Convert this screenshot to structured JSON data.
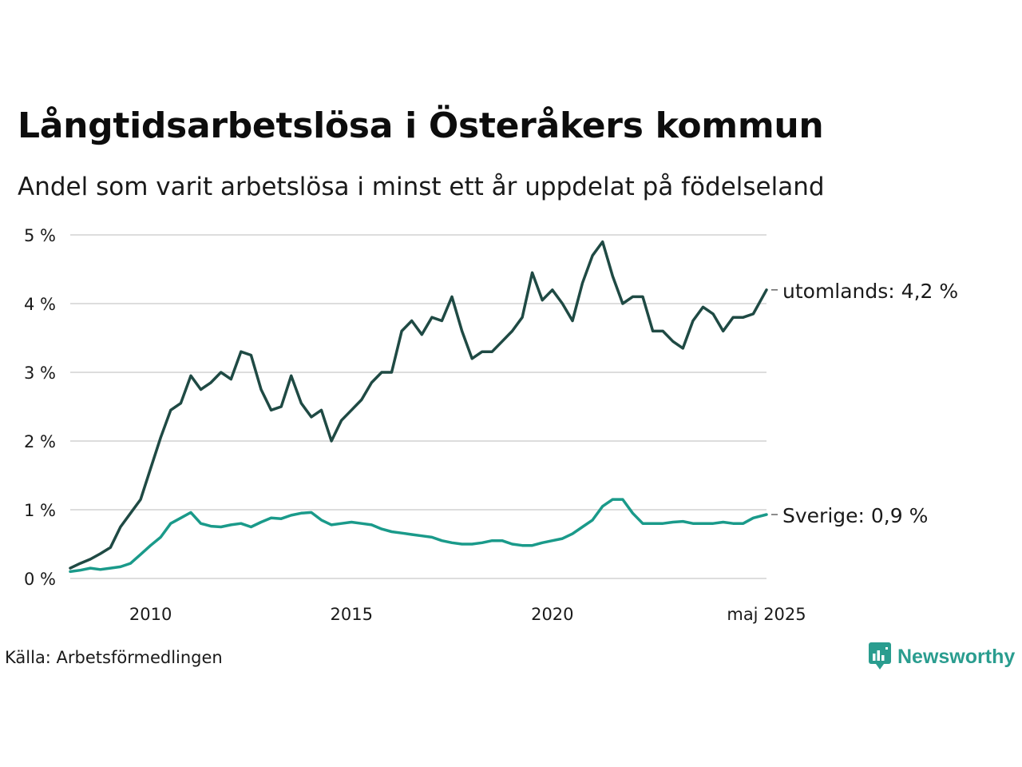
{
  "header": {
    "title": "Långtidsarbetslösa i Österåkers kommun",
    "subtitle": "Andel som varit arbetslösa i minst ett år uppdelat på födelseland"
  },
  "footer": {
    "source": "Källa: Arbetsförmedlingen",
    "brand": "Newsworthy"
  },
  "colors": {
    "utomlands": "#1f4a44",
    "sverige": "#1a9a8a",
    "grid": "#dddddd",
    "brand": "#2a9d8f"
  },
  "chart_data": {
    "type": "line",
    "y_tick_values": [
      0,
      1,
      2,
      3,
      4,
      5
    ],
    "y_tick_labels": [
      "0 %",
      "1 %",
      "2 %",
      "3 %",
      "4 %",
      "5 %"
    ],
    "x_tick_values": [
      2010,
      2015,
      2020,
      2025.33
    ],
    "x_tick_labels": [
      "2010",
      "2015",
      "2020",
      "maj 2025"
    ],
    "xlim": [
      2008.0,
      2025.33
    ],
    "ylim": [
      0,
      5
    ],
    "grid": true,
    "series": [
      {
        "name": "utomlands",
        "end_label": "utomlands: 4,2 %",
        "x": [
          2008.0,
          2008.25,
          2008.5,
          2008.75,
          2009.0,
          2009.25,
          2009.5,
          2009.75,
          2010.0,
          2010.25,
          2010.5,
          2010.75,
          2011.0,
          2011.25,
          2011.5,
          2011.75,
          2012.0,
          2012.25,
          2012.5,
          2012.75,
          2013.0,
          2013.25,
          2013.5,
          2013.75,
          2014.0,
          2014.25,
          2014.5,
          2014.75,
          2015.0,
          2015.25,
          2015.5,
          2015.75,
          2016.0,
          2016.25,
          2016.5,
          2016.75,
          2017.0,
          2017.25,
          2017.5,
          2017.75,
          2018.0,
          2018.25,
          2018.5,
          2018.75,
          2019.0,
          2019.25,
          2019.5,
          2019.75,
          2020.0,
          2020.25,
          2020.5,
          2020.75,
          2021.0,
          2021.25,
          2021.5,
          2021.75,
          2022.0,
          2022.25,
          2022.5,
          2022.75,
          2023.0,
          2023.25,
          2023.5,
          2023.75,
          2024.0,
          2024.25,
          2024.5,
          2024.75,
          2025.0,
          2025.33
        ],
        "values": [
          0.15,
          0.22,
          0.28,
          0.36,
          0.45,
          0.75,
          0.95,
          1.15,
          1.6,
          2.05,
          2.45,
          2.55,
          2.95,
          2.75,
          2.85,
          3.0,
          2.9,
          3.3,
          3.25,
          2.75,
          2.45,
          2.5,
          2.95,
          2.55,
          2.35,
          2.45,
          2.0,
          2.3,
          2.45,
          2.6,
          2.85,
          3.0,
          3.0,
          3.6,
          3.75,
          3.55,
          3.8,
          3.75,
          4.1,
          3.6,
          3.2,
          3.3,
          3.3,
          3.45,
          3.6,
          3.8,
          4.45,
          4.05,
          4.2,
          4.0,
          3.75,
          4.3,
          4.7,
          4.9,
          4.4,
          4.0,
          4.1,
          4.1,
          3.6,
          3.6,
          3.45,
          3.35,
          3.75,
          3.95,
          3.85,
          3.6,
          3.8,
          3.8,
          3.85,
          4.2
        ]
      },
      {
        "name": "Sverige",
        "end_label": "Sverige: 0,9 %",
        "x": [
          2008.0,
          2008.25,
          2008.5,
          2008.75,
          2009.0,
          2009.25,
          2009.5,
          2009.75,
          2010.0,
          2010.25,
          2010.5,
          2010.75,
          2011.0,
          2011.25,
          2011.5,
          2011.75,
          2012.0,
          2012.25,
          2012.5,
          2012.75,
          2013.0,
          2013.25,
          2013.5,
          2013.75,
          2014.0,
          2014.25,
          2014.5,
          2014.75,
          2015.0,
          2015.25,
          2015.5,
          2015.75,
          2016.0,
          2016.25,
          2016.5,
          2016.75,
          2017.0,
          2017.25,
          2017.5,
          2017.75,
          2018.0,
          2018.25,
          2018.5,
          2018.75,
          2019.0,
          2019.25,
          2019.5,
          2019.75,
          2020.0,
          2020.25,
          2020.5,
          2020.75,
          2021.0,
          2021.25,
          2021.5,
          2021.75,
          2022.0,
          2022.25,
          2022.5,
          2022.75,
          2023.0,
          2023.25,
          2023.5,
          2023.75,
          2024.0,
          2024.25,
          2024.5,
          2024.75,
          2025.0,
          2025.33
        ],
        "values": [
          0.1,
          0.12,
          0.15,
          0.13,
          0.15,
          0.17,
          0.22,
          0.35,
          0.48,
          0.6,
          0.8,
          0.88,
          0.96,
          0.8,
          0.76,
          0.75,
          0.78,
          0.8,
          0.75,
          0.82,
          0.88,
          0.87,
          0.92,
          0.95,
          0.96,
          0.85,
          0.78,
          0.8,
          0.82,
          0.8,
          0.78,
          0.72,
          0.68,
          0.66,
          0.64,
          0.62,
          0.6,
          0.55,
          0.52,
          0.5,
          0.5,
          0.52,
          0.55,
          0.55,
          0.5,
          0.48,
          0.48,
          0.52,
          0.55,
          0.58,
          0.65,
          0.75,
          0.85,
          1.05,
          1.15,
          1.15,
          0.95,
          0.8,
          0.8,
          0.8,
          0.82,
          0.83,
          0.8,
          0.8,
          0.8,
          0.82,
          0.8,
          0.8,
          0.88,
          0.93
        ]
      }
    ]
  }
}
